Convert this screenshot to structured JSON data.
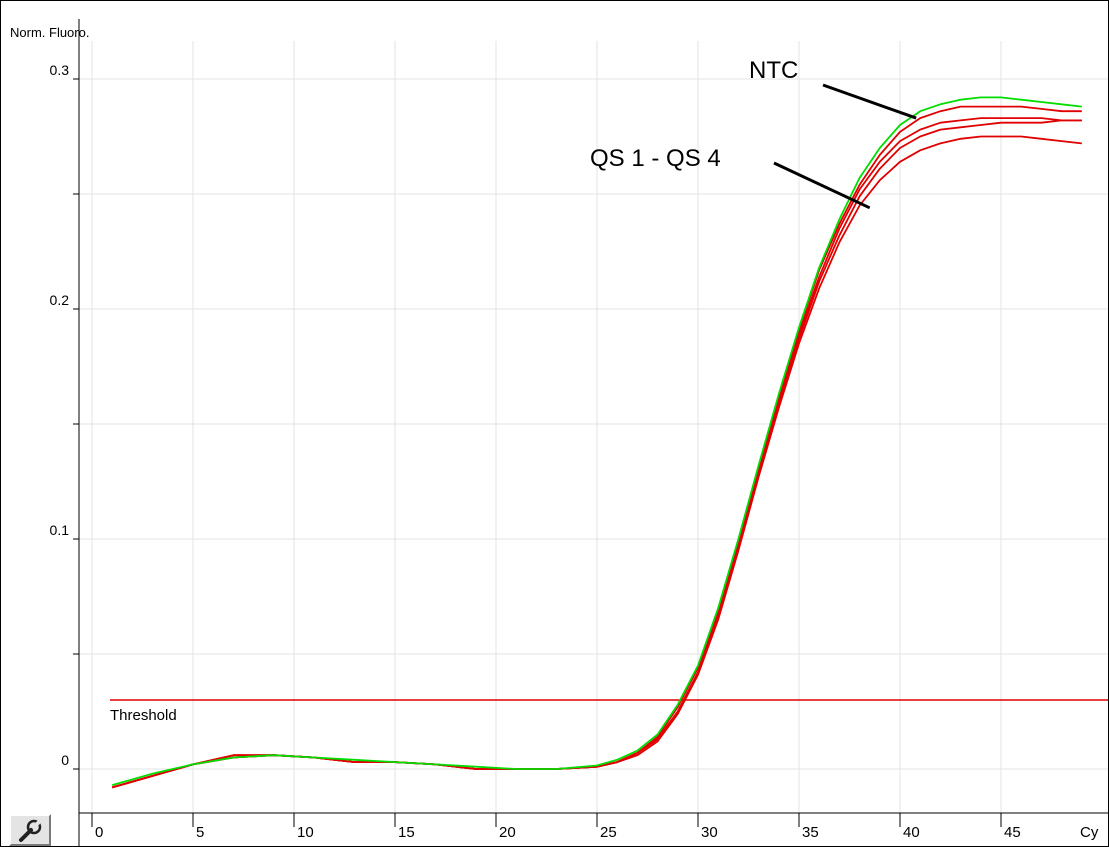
{
  "chart_data": {
    "type": "line",
    "ylabel": "Norm. Fluoro.",
    "xlabel": "Cy",
    "xlim": [
      0,
      49
    ],
    "ylim": [
      -0.015,
      0.32
    ],
    "x_ticks": [
      0,
      5,
      10,
      15,
      20,
      25,
      30,
      35,
      40,
      45
    ],
    "x_tick_labels": [
      "0",
      "5",
      "10",
      "15",
      "20",
      "25",
      "30",
      "35",
      "40",
      "45"
    ],
    "y_major_ticks": [
      0,
      0.1,
      0.2,
      0.3
    ],
    "y_tick_labels": [
      "0",
      "0.1",
      "0.2",
      "0.3"
    ],
    "y_minor_ticks": [
      0.05,
      0.15,
      0.25
    ],
    "grid": true,
    "threshold": {
      "label": "Threshold",
      "value": 0.03,
      "color": "#e00000"
    },
    "annotations": [
      {
        "text": "NTC",
        "pointer_to": {
          "x": 40.8,
          "y": 0.283
        }
      },
      {
        "text": "QS 1 - QS 4",
        "pointer_to": {
          "x": 38.5,
          "y": 0.244
        }
      }
    ],
    "series": [
      {
        "color": "#00dd00",
        "x": [
          1,
          3,
          5,
          7,
          9,
          11,
          13,
          15,
          17,
          19,
          21,
          23,
          25,
          26,
          27,
          28,
          29,
          30,
          31,
          32,
          33,
          34,
          35,
          36,
          37,
          38,
          39,
          40,
          41,
          42,
          43,
          44,
          45,
          46,
          47,
          48,
          49
        ],
        "y": [
          -0.007,
          -0.002,
          0.002,
          0.005,
          0.006,
          0.005,
          0.004,
          0.003,
          0.002,
          0.001,
          0.0,
          0.0,
          0.0015,
          0.004,
          0.008,
          0.015,
          0.028,
          0.045,
          0.07,
          0.1,
          0.132,
          0.163,
          0.192,
          0.218,
          0.239,
          0.257,
          0.27,
          0.28,
          0.286,
          0.289,
          0.291,
          0.292,
          0.292,
          0.291,
          0.29,
          0.289,
          0.288
        ]
      },
      {
        "color": "#e00000",
        "x": [
          1,
          3,
          5,
          7,
          9,
          11,
          13,
          15,
          17,
          19,
          21,
          23,
          25,
          26,
          27,
          28,
          29,
          30,
          31,
          32,
          33,
          34,
          35,
          36,
          37,
          38,
          39,
          40,
          41,
          42,
          43,
          44,
          45,
          46,
          47,
          48,
          49
        ],
        "y": [
          -0.008,
          -0.003,
          0.002,
          0.006,
          0.006,
          0.005,
          0.003,
          0.003,
          0.002,
          0.0,
          0.0,
          0.0,
          0.001,
          0.003,
          0.007,
          0.014,
          0.027,
          0.044,
          0.069,
          0.099,
          0.131,
          0.162,
          0.191,
          0.217,
          0.237,
          0.254,
          0.267,
          0.277,
          0.283,
          0.286,
          0.288,
          0.288,
          0.288,
          0.288,
          0.287,
          0.286,
          0.286
        ]
      },
      {
        "color": "#e00000",
        "x": [
          1,
          3,
          5,
          7,
          9,
          11,
          13,
          15,
          17,
          19,
          21,
          23,
          25,
          26,
          27,
          28,
          29,
          30,
          31,
          32,
          33,
          34,
          35,
          36,
          37,
          38,
          39,
          40,
          41,
          42,
          43,
          44,
          45,
          46,
          47,
          48,
          49
        ],
        "y": [
          -0.008,
          -0.003,
          0.002,
          0.005,
          0.006,
          0.005,
          0.003,
          0.003,
          0.002,
          0.0,
          0.0,
          0.0,
          0.001,
          0.003,
          0.007,
          0.013,
          0.025,
          0.042,
          0.067,
          0.097,
          0.129,
          0.16,
          0.189,
          0.214,
          0.235,
          0.252,
          0.264,
          0.273,
          0.278,
          0.281,
          0.282,
          0.283,
          0.283,
          0.283,
          0.283,
          0.282,
          0.282
        ]
      },
      {
        "color": "#e00000",
        "x": [
          1,
          3,
          5,
          7,
          9,
          11,
          13,
          15,
          17,
          19,
          21,
          23,
          25,
          26,
          27,
          28,
          29,
          30,
          31,
          32,
          33,
          34,
          35,
          36,
          37,
          38,
          39,
          40,
          41,
          42,
          43,
          44,
          45,
          46,
          47,
          48,
          49
        ],
        "y": [
          -0.008,
          -0.003,
          0.002,
          0.006,
          0.006,
          0.005,
          0.003,
          0.003,
          0.002,
          0.0,
          0.0,
          0.0,
          0.001,
          0.003,
          0.007,
          0.013,
          0.025,
          0.042,
          0.066,
          0.096,
          0.128,
          0.159,
          0.187,
          0.212,
          0.232,
          0.249,
          0.261,
          0.27,
          0.275,
          0.278,
          0.279,
          0.28,
          0.281,
          0.281,
          0.281,
          0.282,
          0.282
        ]
      },
      {
        "color": "#e00000",
        "x": [
          1,
          3,
          5,
          7,
          9,
          11,
          13,
          15,
          17,
          19,
          21,
          23,
          25,
          26,
          27,
          28,
          29,
          30,
          31,
          32,
          33,
          34,
          35,
          36,
          37,
          38,
          39,
          40,
          41,
          42,
          43,
          44,
          45,
          46,
          47,
          48,
          49
        ],
        "y": [
          -0.008,
          -0.003,
          0.002,
          0.005,
          0.006,
          0.005,
          0.003,
          0.003,
          0.002,
          0.0,
          0.0,
          0.0,
          0.001,
          0.003,
          0.006,
          0.012,
          0.024,
          0.041,
          0.065,
          0.095,
          0.127,
          0.157,
          0.185,
          0.209,
          0.229,
          0.245,
          0.256,
          0.264,
          0.269,
          0.272,
          0.274,
          0.275,
          0.275,
          0.275,
          0.274,
          0.273,
          0.272
        ]
      }
    ]
  },
  "toolbar": {
    "tool_icon": "wrench-icon"
  }
}
